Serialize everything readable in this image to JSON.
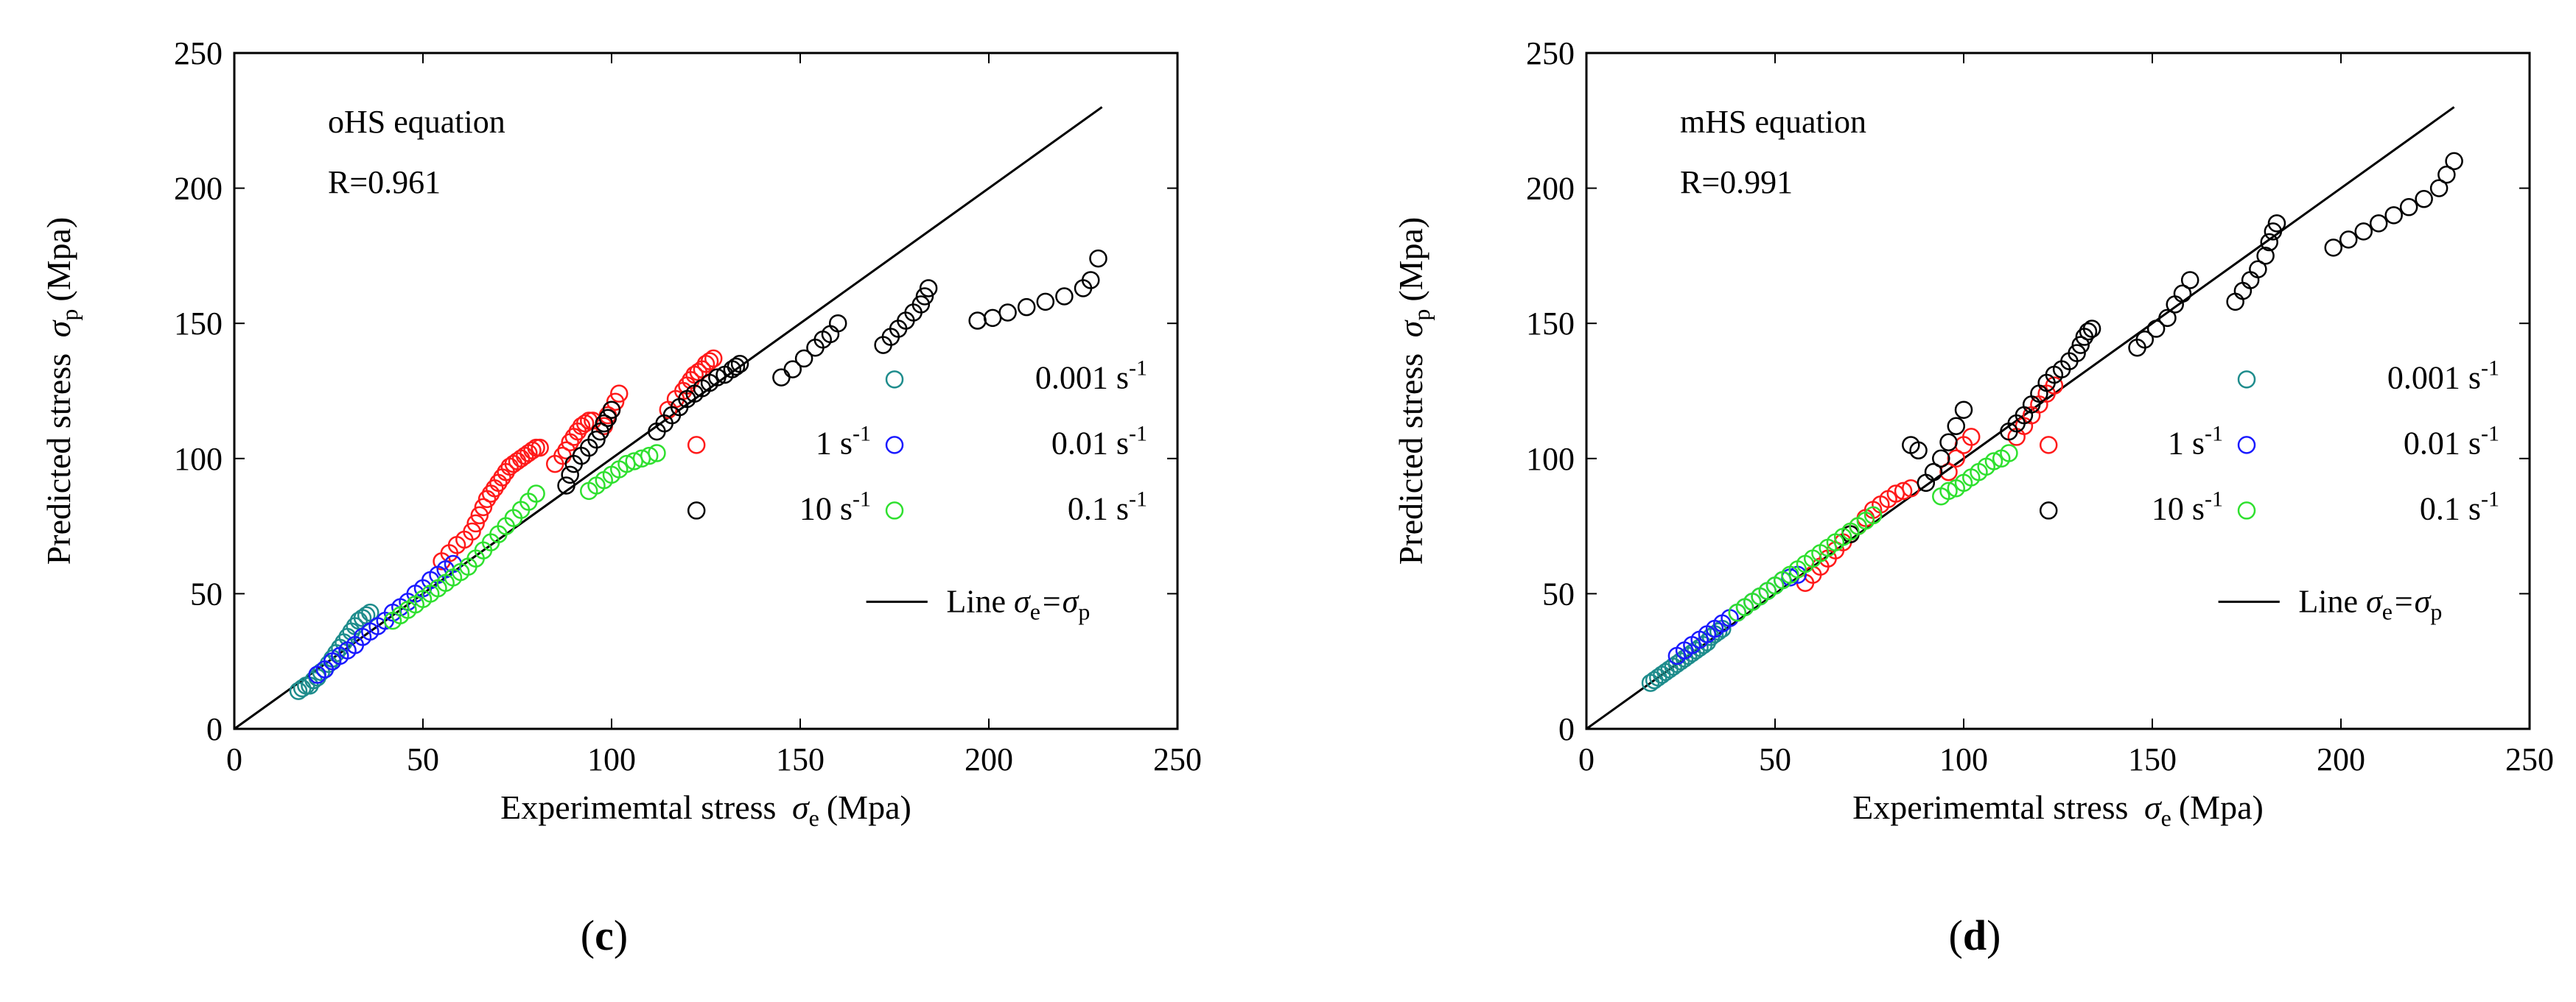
{
  "chart_data": [
    {
      "type": "scatter",
      "panel_label": "c",
      "xlabel": "Experimemtal stress",
      "xlabel_symbol": "σ",
      "xlabel_sub": "e",
      "xlabel_unit": "(Mpa)",
      "ylabel": "Predicted stress",
      "ylabel_symbol": "σ",
      "ylabel_sub": "p",
      "ylabel_unit": "(Mpa)",
      "xlim": [
        0,
        250
      ],
      "ylim": [
        0,
        250
      ],
      "xticks": [
        "0",
        "50",
        "100",
        "150",
        "200",
        "250"
      ],
      "yticks": [
        "0",
        "50",
        "100",
        "150",
        "200",
        "250"
      ],
      "annotation_title": "oHS equation",
      "annotation_r": "R=0.961",
      "line": {
        "name": "Line",
        "label_left": "σ",
        "sub_left": "e",
        "label_right": "=σ",
        "sub_right": "p",
        "x": [
          0,
          230
        ],
        "y": [
          0,
          230
        ]
      },
      "series": [
        {
          "name": "0.001",
          "unit": "s",
          "exp": "-1",
          "color": "#1e8c8c",
          "x": [
            17,
            18,
            19,
            20,
            21,
            22,
            23,
            24,
            25,
            26,
            27,
            28,
            29,
            30,
            31,
            32,
            33,
            34,
            35,
            36
          ],
          "y": [
            14,
            15,
            16,
            16,
            18,
            19,
            21,
            22,
            24,
            26,
            28,
            30,
            32,
            34,
            36,
            38,
            40,
            41,
            42,
            43
          ]
        },
        {
          "name": "1",
          "unit": "s",
          "exp": "-1",
          "color": "#ff1a1a",
          "x": [
            55,
            57,
            59,
            61,
            63,
            64,
            65,
            66,
            67,
            68,
            69,
            70,
            71,
            72,
            73,
            74,
            75,
            76,
            77,
            78,
            79,
            80,
            81,
            85,
            87,
            88,
            89,
            90,
            91,
            92,
            93,
            94,
            95,
            98,
            99,
            100,
            101,
            102,
            115,
            117,
            119,
            120,
            121,
            122,
            123,
            124,
            125,
            126,
            127
          ],
          "y": [
            62,
            65,
            68,
            70,
            73,
            76,
            79,
            82,
            85,
            87,
            89,
            91,
            93,
            95,
            97,
            98,
            99,
            100,
            101,
            102,
            103,
            104,
            104,
            98,
            101,
            103,
            106,
            108,
            110,
            112,
            113,
            114,
            114,
            112,
            116,
            118,
            121,
            124,
            118,
            122,
            125,
            127,
            129,
            131,
            132,
            133,
            135,
            136,
            137
          ]
        },
        {
          "name": "10",
          "unit": "s",
          "exp": "-1",
          "color": "#000000",
          "x": [
            88,
            89,
            90,
            92,
            94,
            96,
            97,
            98,
            99,
            100,
            112,
            114,
            116,
            118,
            120,
            122,
            124,
            126,
            128,
            130,
            132,
            133,
            134,
            145,
            148,
            151,
            154,
            156,
            158,
            160,
            172,
            174,
            176,
            178,
            180,
            182,
            183,
            184,
            197,
            201,
            205,
            210,
            215,
            220,
            225,
            227,
            229
          ],
          "y": [
            90,
            94,
            98,
            101,
            104,
            107,
            110,
            113,
            115,
            118,
            110,
            113,
            116,
            119,
            122,
            124,
            126,
            128,
            130,
            131,
            133,
            134,
            135,
            130,
            133,
            137,
            141,
            144,
            146,
            150,
            142,
            145,
            148,
            151,
            154,
            157,
            160,
            163,
            151,
            152,
            154,
            156,
            158,
            160,
            163,
            166,
            174
          ]
        },
        {
          "name": "0.01",
          "unit": "s",
          "exp": "-1",
          "color": "#1a1aff",
          "x": [
            22,
            24,
            26,
            28,
            30,
            32,
            34,
            36,
            38,
            40,
            42,
            44,
            46,
            48,
            50,
            52,
            54,
            56,
            58
          ],
          "y": [
            20,
            22,
            25,
            27,
            29,
            31,
            34,
            36,
            38,
            40,
            43,
            45,
            47,
            50,
            52,
            55,
            57,
            59,
            61
          ]
        },
        {
          "name": "0.1",
          "unit": "s",
          "exp": "-1",
          "color": "#2fe02f",
          "x": [
            42,
            44,
            46,
            48,
            50,
            52,
            54,
            56,
            58,
            60,
            62,
            64,
            66,
            68,
            70,
            72,
            74,
            76,
            78,
            80,
            94,
            96,
            98,
            100,
            102,
            104,
            106,
            108,
            110,
            112
          ],
          "y": [
            40,
            42,
            44,
            46,
            48,
            50,
            52,
            54,
            56,
            58,
            60,
            63,
            66,
            69,
            72,
            75,
            78,
            81,
            84,
            87,
            88,
            90,
            92,
            94,
            96,
            98,
            99,
            100,
            101,
            102
          ]
        }
      ]
    },
    {
      "type": "scatter",
      "panel_label": "d",
      "xlabel": "Experimemtal stress",
      "xlabel_symbol": "σ",
      "xlabel_sub": "e",
      "xlabel_unit": "(Mpa)",
      "ylabel": "Predicted stress",
      "ylabel_symbol": "σ",
      "ylabel_sub": "p",
      "ylabel_unit": "(Mpa)",
      "xlim": [
        0,
        250
      ],
      "ylim": [
        0,
        250
      ],
      "xticks": [
        "0",
        "50",
        "100",
        "150",
        "200",
        "250"
      ],
      "yticks": [
        "0",
        "50",
        "100",
        "150",
        "200",
        "250"
      ],
      "annotation_title": "mHS equation",
      "annotation_r": "R=0.991",
      "line": {
        "name": "Line",
        "label_left": "σ",
        "sub_left": "e",
        "label_right": "=σ",
        "sub_right": "p",
        "x": [
          0,
          230
        ],
        "y": [
          0,
          230
        ]
      },
      "series": [
        {
          "name": "0.001",
          "unit": "s",
          "exp": "-1",
          "color": "#1e8c8c",
          "x": [
            17,
            18,
            19,
            20,
            21,
            22,
            23,
            24,
            25,
            26,
            27,
            28,
            29,
            30,
            31,
            32,
            33,
            34,
            35,
            36
          ],
          "y": [
            17,
            18,
            19,
            20,
            21,
            22,
            23,
            24,
            25,
            26,
            27,
            28,
            29,
            30,
            31,
            32,
            34,
            35,
            36,
            37
          ]
        },
        {
          "name": "1",
          "unit": "s",
          "exp": "-1",
          "color": "#ff1a1a",
          "x": [
            58,
            60,
            62,
            64,
            66,
            68,
            70,
            72,
            74,
            76,
            78,
            80,
            82,
            84,
            86,
            96,
            98,
            100,
            102,
            114,
            116,
            118,
            120,
            122,
            124
          ],
          "y": [
            54,
            57,
            60,
            63,
            66,
            69,
            72,
            75,
            78,
            81,
            83,
            85,
            87,
            88,
            89,
            95,
            100,
            105,
            108,
            108,
            112,
            116,
            120,
            124,
            127
          ]
        },
        {
          "name": "10",
          "unit": "s",
          "exp": "-1",
          "color": "#000000",
          "x": [
            70,
            86,
            88,
            90,
            92,
            94,
            96,
            98,
            100,
            112,
            114,
            116,
            118,
            120,
            122,
            124,
            126,
            128,
            130,
            131,
            132,
            133,
            134,
            146,
            148,
            151,
            154,
            156,
            158,
            160,
            172,
            174,
            176,
            178,
            180,
            181,
            182,
            183,
            198,
            202,
            206,
            210,
            214,
            218,
            222,
            226,
            228,
            230
          ],
          "y": [
            72,
            105,
            103,
            91,
            95,
            100,
            106,
            112,
            118,
            110,
            113,
            116,
            120,
            124,
            128,
            131,
            133,
            136,
            139,
            142,
            145,
            147,
            148,
            141,
            144,
            148,
            152,
            157,
            161,
            166,
            158,
            162,
            166,
            170,
            175,
            180,
            184,
            187,
            178,
            181,
            184,
            187,
            190,
            193,
            196,
            200,
            205,
            210
          ]
        },
        {
          "name": "0.01",
          "unit": "s",
          "exp": "-1",
          "color": "#1a1aff",
          "x": [
            24,
            26,
            28,
            30,
            32,
            34,
            36,
            38,
            40,
            42,
            44,
            46,
            48,
            50,
            52,
            54,
            56
          ],
          "y": [
            27,
            29,
            31,
            33,
            35,
            37,
            39,
            41,
            43,
            45,
            47,
            49,
            51,
            53,
            55,
            56,
            57
          ]
        },
        {
          "name": "0.1",
          "unit": "s",
          "exp": "-1",
          "color": "#2fe02f",
          "x": [
            40,
            42,
            44,
            46,
            48,
            50,
            52,
            54,
            56,
            58,
            60,
            62,
            64,
            66,
            68,
            70,
            72,
            74,
            76,
            94,
            96,
            98,
            100,
            102,
            104,
            106,
            108,
            110,
            112
          ],
          "y": [
            43,
            45,
            47,
            49,
            51,
            53,
            55,
            57,
            59,
            61,
            63,
            65,
            67,
            69,
            71,
            73,
            75,
            77,
            79,
            86,
            88,
            89,
            91,
            93,
            95,
            97,
            99,
            100,
            102
          ]
        }
      ]
    }
  ]
}
